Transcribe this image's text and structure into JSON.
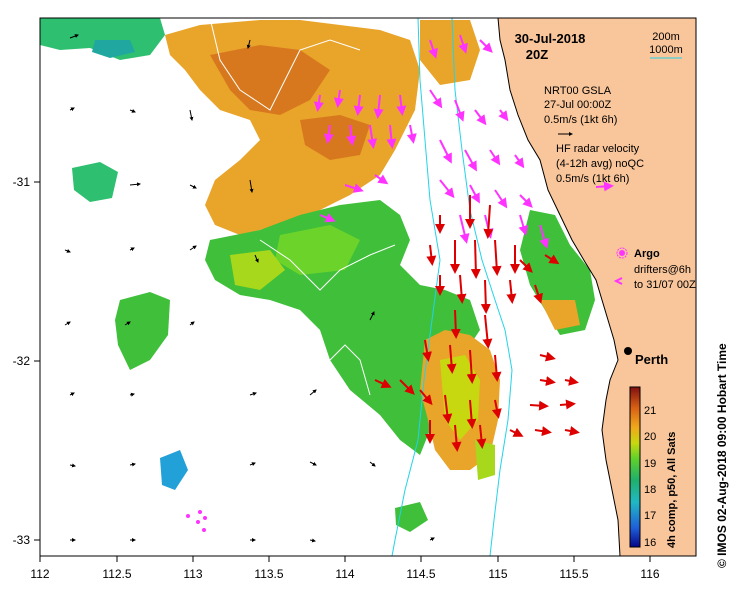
{
  "map": {
    "date": "30-Jul-2018",
    "time": "20Z",
    "depth_labels": [
      "200m",
      "1000m"
    ],
    "gsla": {
      "line1": "NRT00 GSLA",
      "line2": "27-Jul 00:00Z",
      "line3": "0.5m/s (1kt 6h)"
    },
    "hf_radar": {
      "line1": "HF radar velocity",
      "line2": "(4-12h avg) noQC",
      "line3": "0.5m/s (1kt 6h)"
    },
    "argo_label": "Argo",
    "drifters": {
      "line1": "drifters@6h",
      "line2": "to 31/07 00Z"
    },
    "city": "Perth",
    "colorbar": {
      "title": "4h comp, p50, All Sats",
      "ticks": [
        "21",
        "20",
        "19",
        "18",
        "17",
        "16"
      ],
      "min": 15.6,
      "max": 21.7
    },
    "x_ticks": [
      "112",
      "112.5",
      "113",
      "113.5",
      "114",
      "114.5",
      "115",
      "115.5",
      "116"
    ],
    "y_ticks": [
      "-31",
      "-32",
      "-33"
    ],
    "x_range": [
      112,
      116.3
    ],
    "y_range": [
      -33.05,
      -30.0
    ],
    "credit": "IMOS 02-Aug-2018 09:00 Hobart Time",
    "colors": {
      "land": "#f9c59a",
      "hf_vector": "#ff33ff",
      "drifter_vector": "#dd0000",
      "isobath": "#22d4e8"
    }
  }
}
